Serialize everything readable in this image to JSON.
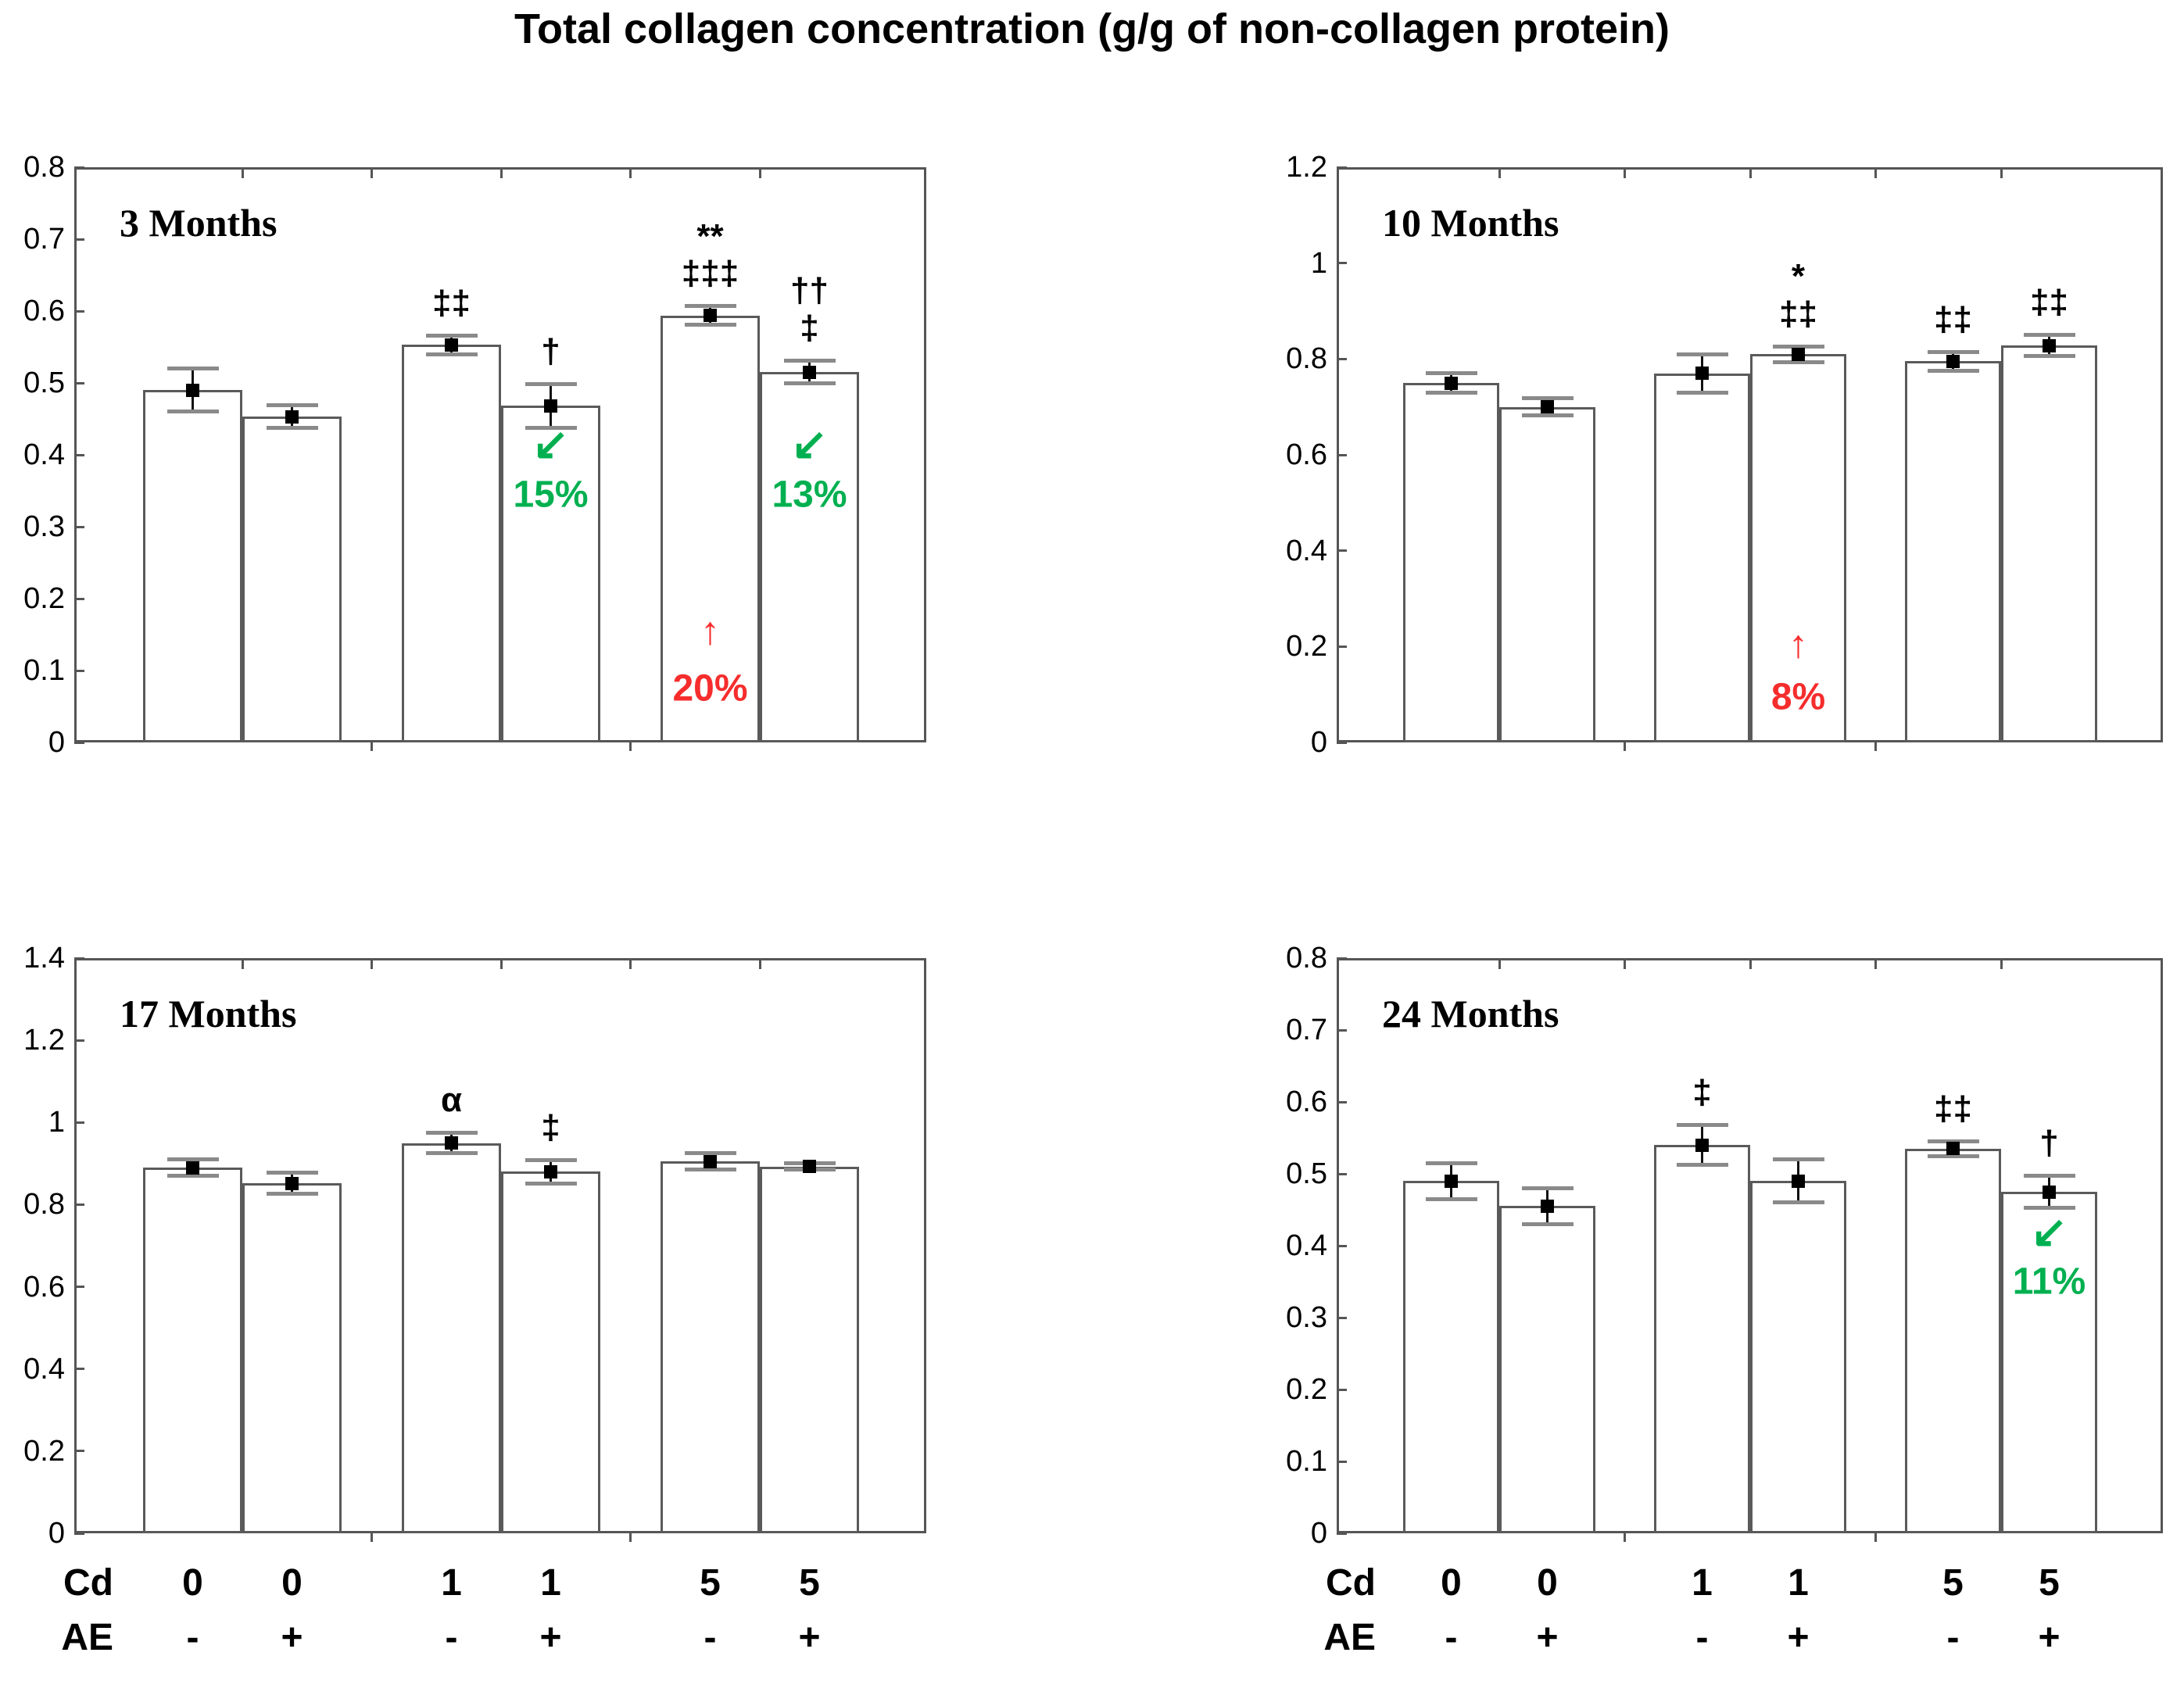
{
  "title": "Total collagen concentration (g/g of non-collagen protein)",
  "colors": {
    "green": "#00B050",
    "red": "#F62D2D",
    "frame": "#555555",
    "bar_border": "#5a5a5a",
    "cap": "#8a8a8a"
  },
  "icons": {
    "decrease-arrow": "↙",
    "increase-arrow": "↑"
  },
  "axis_rows": {
    "row1_label": "Cd",
    "row2_label": "AE",
    "row1_values": [
      "0",
      "0",
      "1",
      "1",
      "5",
      "5"
    ],
    "row2_values": [
      "-",
      "+",
      "-",
      "+",
      "-",
      "+"
    ]
  },
  "chart_data": [
    {
      "type": "bar",
      "title": "3 Months",
      "ylabel": "Total collagen concentration (g/g of non-collagen protein)",
      "ylim": [
        0,
        0.8
      ],
      "yticks": [
        [
          0,
          "0"
        ],
        [
          0.1,
          "0.1"
        ],
        [
          0.2,
          "0.2"
        ],
        [
          0.3,
          "0.3"
        ],
        [
          0.4,
          "0.4"
        ],
        [
          0.5,
          "0.5"
        ],
        [
          0.6,
          "0.6"
        ],
        [
          0.7,
          "0.7"
        ],
        [
          0.8,
          "0.8"
        ]
      ],
      "categories": [
        "Cd0 AE-",
        "Cd0 AE+",
        "Cd1 AE-",
        "Cd1 AE+",
        "Cd5 AE-",
        "Cd5 AE+"
      ],
      "values": [
        0.49,
        0.453,
        0.553,
        0.468,
        0.594,
        0.515
      ],
      "errors": [
        0.03,
        0.016,
        0.013,
        0.03,
        0.013,
        0.016
      ],
      "sig": [
        [],
        [],
        [
          "‡‡"
        ],
        [
          "†"
        ],
        [
          "**",
          "‡‡‡"
        ],
        [
          "††",
          "‡"
        ]
      ],
      "change": [
        null,
        null,
        null,
        {
          "dir": "down",
          "pct": "15%",
          "arrow_y": 0.415,
          "text_y": 0.345
        },
        {
          "dir": "up",
          "pct": "20%",
          "arrow_y": 0.155,
          "text_y": 0.075
        },
        {
          "dir": "down",
          "pct": "13%",
          "arrow_y": 0.415,
          "text_y": 0.345
        }
      ]
    },
    {
      "type": "bar",
      "title": "10 Months",
      "ylim": [
        0,
        1.2
      ],
      "yticks": [
        [
          0,
          "0"
        ],
        [
          0.2,
          "0.2"
        ],
        [
          0.4,
          "0.4"
        ],
        [
          0.6,
          "0.6"
        ],
        [
          0.8,
          "0.8"
        ],
        [
          1,
          "1"
        ],
        [
          1.2,
          "1.2"
        ]
      ],
      "categories": [
        "Cd0 AE-",
        "Cd0 AE+",
        "Cd1 AE-",
        "Cd1 AE+",
        "Cd5 AE-",
        "Cd5 AE+"
      ],
      "values": [
        0.75,
        0.7,
        0.77,
        0.81,
        0.795,
        0.828
      ],
      "errors": [
        0.02,
        0.018,
        0.04,
        0.016,
        0.02,
        0.022
      ],
      "sig": [
        [],
        [],
        [],
        [
          "*",
          "‡‡"
        ],
        [
          "‡‡"
        ],
        [
          "‡‡"
        ]
      ],
      "change": [
        null,
        null,
        null,
        {
          "dir": "up",
          "pct": "8%",
          "arrow_y": 0.205,
          "text_y": 0.095
        },
        null,
        null
      ]
    },
    {
      "type": "bar",
      "title": "17 Months",
      "ylim": [
        0,
        1.4
      ],
      "yticks": [
        [
          0,
          "0"
        ],
        [
          0.2,
          "0.2"
        ],
        [
          0.4,
          "0.4"
        ],
        [
          0.6,
          "0.6"
        ],
        [
          0.8,
          "0.8"
        ],
        [
          1,
          "1"
        ],
        [
          1.2,
          "1.2"
        ],
        [
          1.4,
          "1.4"
        ]
      ],
      "categories": [
        "Cd0 AE-",
        "Cd0 AE+",
        "Cd1 AE-",
        "Cd1 AE+",
        "Cd5 AE-",
        "Cd5 AE+"
      ],
      "values": [
        0.89,
        0.852,
        0.95,
        0.88,
        0.905,
        0.893
      ],
      "errors": [
        0.02,
        0.025,
        0.025,
        0.028,
        0.02,
        0.008
      ],
      "sig": [
        [],
        [],
        [
          "α"
        ],
        [
          "‡"
        ],
        [],
        []
      ],
      "change": [
        null,
        null,
        null,
        null,
        null,
        null
      ]
    },
    {
      "type": "bar",
      "title": "24 Months",
      "ylim": [
        0,
        0.8
      ],
      "yticks": [
        [
          0,
          "0"
        ],
        [
          0.1,
          "0.1"
        ],
        [
          0.2,
          "0.2"
        ],
        [
          0.3,
          "0.3"
        ],
        [
          0.4,
          "0.4"
        ],
        [
          0.5,
          "0.5"
        ],
        [
          0.6,
          "0.6"
        ],
        [
          0.7,
          "0.7"
        ],
        [
          0.8,
          "0.8"
        ]
      ],
      "categories": [
        "Cd0 AE-",
        "Cd0 AE+",
        "Cd1 AE-",
        "Cd1 AE+",
        "Cd5 AE-",
        "Cd5 AE+"
      ],
      "values": [
        0.49,
        0.455,
        0.54,
        0.49,
        0.535,
        0.475
      ],
      "errors": [
        0.025,
        0.025,
        0.028,
        0.03,
        0.01,
        0.022
      ],
      "sig": [
        [],
        [],
        [
          "‡"
        ],
        [],
        [
          "‡‡"
        ],
        [
          "†"
        ]
      ],
      "change": [
        null,
        null,
        null,
        null,
        null,
        {
          "dir": "down",
          "pct": "11%",
          "arrow_y": 0.42,
          "text_y": 0.35
        }
      ]
    }
  ]
}
